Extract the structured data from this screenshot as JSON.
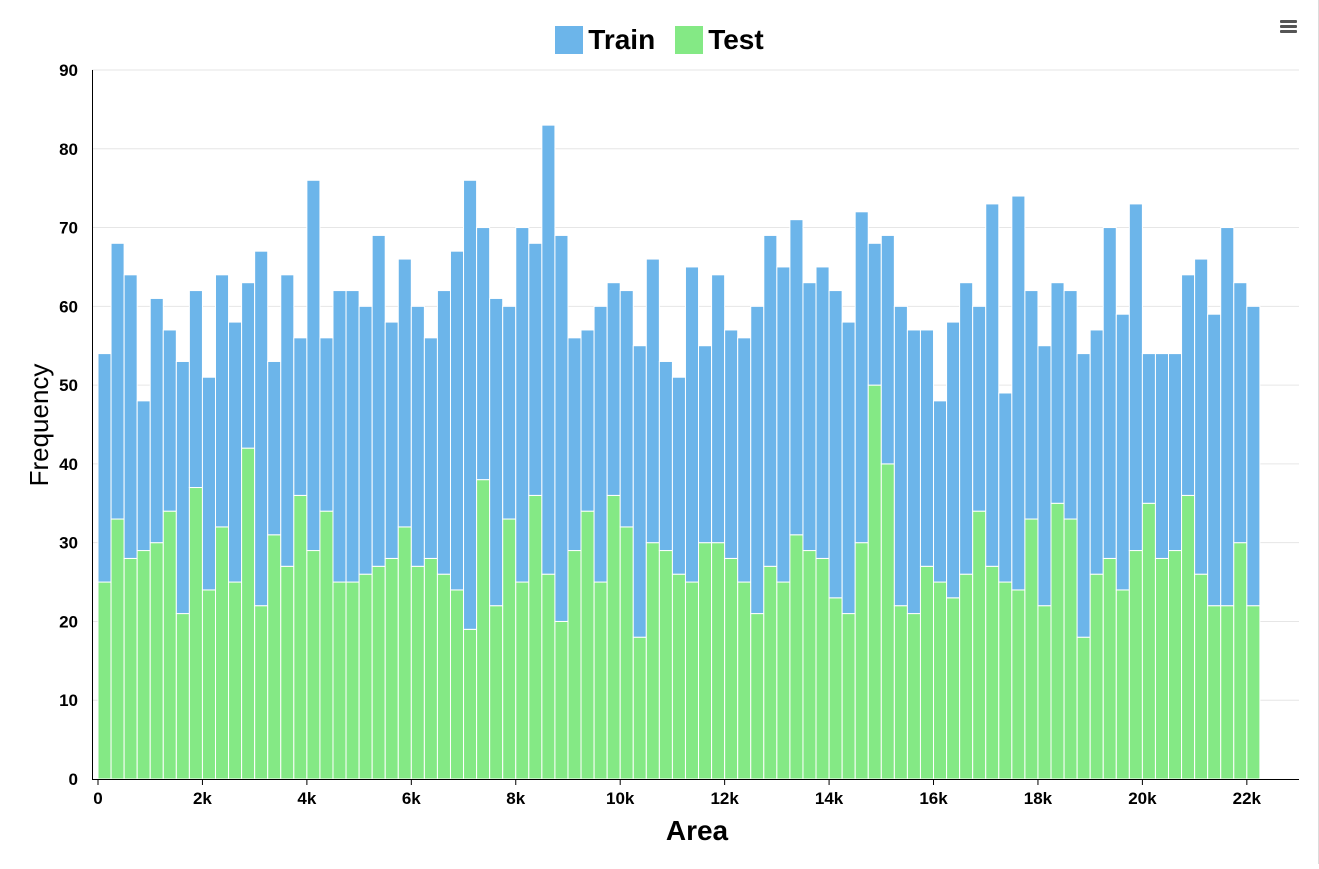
{
  "chart_data": {
    "type": "bar",
    "stacked": true,
    "bin_width": 250,
    "x_start": 125,
    "x_ticks": [
      0,
      2000,
      4000,
      6000,
      8000,
      10000,
      12000,
      14000,
      16000,
      18000,
      20000,
      22000
    ],
    "x_tick_labels": [
      "0",
      "2k",
      "4k",
      "6k",
      "8k",
      "10k",
      "12k",
      "14k",
      "16k",
      "18k",
      "20k",
      "22k"
    ],
    "y_ticks": [
      0,
      10,
      20,
      30,
      40,
      50,
      60,
      70,
      80,
      90
    ],
    "y_tick_labels": [
      "0",
      "10",
      "20",
      "30",
      "40",
      "50",
      "60",
      "70",
      "80",
      "90"
    ],
    "xlabel": "Area",
    "ylabel": "Frequency",
    "xlim": [
      0,
      22750
    ],
    "ylim": [
      0,
      90
    ],
    "grid": "horizontal",
    "legend_position": "top-center",
    "series": [
      {
        "name": "Test",
        "color": "#84e985",
        "values": [
          25,
          33,
          28,
          29,
          30,
          34,
          21,
          37,
          24,
          32,
          25,
          42,
          22,
          31,
          27,
          36,
          29,
          34,
          25,
          25,
          26,
          27,
          28,
          32,
          27,
          28,
          26,
          24,
          19,
          38,
          22,
          33,
          25,
          36,
          26,
          20,
          29,
          34,
          25,
          36,
          32,
          18,
          30,
          29,
          26,
          25,
          30,
          30,
          28,
          25,
          21,
          27,
          25,
          31,
          29,
          28,
          23,
          21,
          30,
          50,
          40,
          22,
          21,
          27,
          25,
          23,
          26,
          34,
          27,
          25,
          24,
          33,
          22,
          35,
          33,
          18,
          26,
          28,
          24,
          29,
          35,
          28,
          29,
          36,
          26,
          22,
          22,
          30,
          22
        ]
      },
      {
        "name": "Train",
        "color": "#6cb5ea",
        "values": [
          29,
          35,
          36,
          19,
          31,
          23,
          32,
          25,
          27,
          32,
          33,
          21,
          45,
          22,
          37,
          20,
          47,
          22,
          37,
          37,
          34,
          42,
          30,
          34,
          33,
          28,
          36,
          43,
          57,
          32,
          39,
          27,
          45,
          32,
          57,
          49,
          27,
          23,
          35,
          27,
          30,
          37,
          36,
          24,
          25,
          40,
          25,
          34,
          29,
          31,
          39,
          42,
          40,
          40,
          34,
          37,
          39,
          37,
          42,
          18,
          29,
          38,
          36,
          30,
          23,
          35,
          37,
          26,
          46,
          24,
          50,
          29,
          33,
          28,
          29,
          36,
          31,
          42,
          35,
          44,
          19,
          26,
          25,
          28,
          40,
          37,
          48,
          33,
          38
        ]
      }
    ]
  },
  "legend": {
    "items": [
      {
        "label": "Train",
        "color": "#6cb5ea"
      },
      {
        "label": "Test",
        "color": "#84e985"
      }
    ]
  },
  "menu": {
    "icon": "hamburger-menu-icon"
  }
}
